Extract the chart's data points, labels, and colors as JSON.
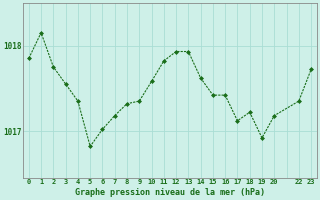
{
  "x": [
    0,
    1,
    2,
    3,
    4,
    5,
    6,
    7,
    8,
    9,
    10,
    11,
    12,
    13,
    14,
    15,
    16,
    17,
    18,
    19,
    20,
    22,
    23
  ],
  "y": [
    1017.85,
    1018.15,
    1017.75,
    1017.55,
    1017.35,
    1016.82,
    1017.02,
    1017.18,
    1017.32,
    1017.35,
    1017.58,
    1017.82,
    1017.93,
    1017.93,
    1017.62,
    1017.42,
    1017.42,
    1017.12,
    1017.22,
    1016.92,
    1017.18,
    1017.35,
    1017.72
  ],
  "line_color": "#1a6e1a",
  "marker": "D",
  "marker_size": 2.0,
  "bg_color": "#cef0e8",
  "grid_color": "#aaddd4",
  "tick_label_color": "#1a6e1a",
  "xlabel": "Graphe pression niveau de la mer (hPa)",
  "yticks": [
    1017,
    1018
  ],
  "ylim": [
    1016.45,
    1018.5
  ],
  "xlim": [
    -0.5,
    23.5
  ],
  "border_color": "#888888",
  "xlabel_fontsize": 6.0,
  "tick_fontsize": 5.0
}
